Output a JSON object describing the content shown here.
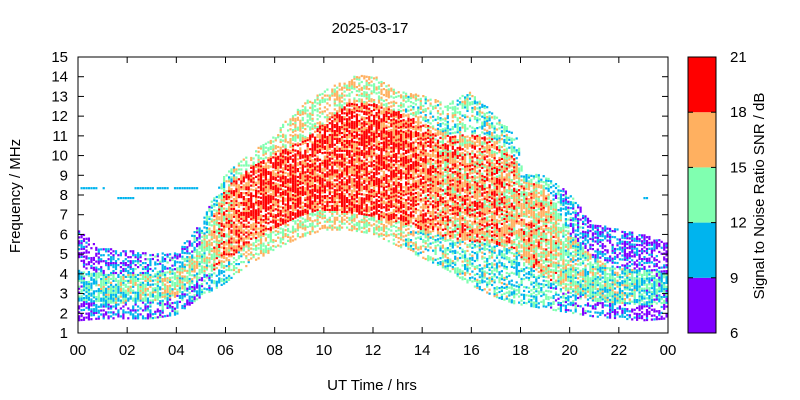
{
  "chart_data": {
    "type": "heatmap",
    "title": "2025-03-17",
    "xlabel": "UT Time / hrs",
    "ylabel": "Frequency / MHz",
    "xlim": [
      0,
      24
    ],
    "ylim": [
      1,
      15
    ],
    "x_tick_labels": [
      "00",
      "02",
      "04",
      "06",
      "08",
      "10",
      "12",
      "14",
      "16",
      "18",
      "20",
      "22",
      "00"
    ],
    "y_tick_labels": [
      "1",
      "2",
      "3",
      "4",
      "5",
      "6",
      "7",
      "8",
      "9",
      "10",
      "11",
      "12",
      "13",
      "14",
      "15"
    ],
    "colorbar": {
      "label": "Signal to Noise Ratio SNR / dB",
      "range": [
        6,
        21
      ],
      "tick_labels": [
        "6",
        "9",
        "12",
        "15",
        "18",
        "21"
      ],
      "bins": [
        {
          "from": 6,
          "to": 9,
          "color": "#8000ff"
        },
        {
          "from": 9,
          "to": 12,
          "color": "#00b4ee"
        },
        {
          "from": 12,
          "to": 15,
          "color": "#80ffb0"
        },
        {
          "from": 15,
          "to": 18,
          "color": "#ffb060"
        },
        {
          "from": 18,
          "to": 21,
          "color": "#ff0000"
        }
      ]
    },
    "grid": false,
    "profile": [
      {
        "t": 0.0,
        "lo": 1.6,
        "hi": 6.2,
        "core_lo": 2.6,
        "core_hi": 4.2,
        "snr": 11
      },
      {
        "t": 1.0,
        "lo": 1.7,
        "hi": 5.3,
        "core_lo": 2.5,
        "core_hi": 4.0,
        "snr": 13
      },
      {
        "t": 2.0,
        "lo": 1.7,
        "hi": 5.2,
        "core_lo": 2.5,
        "core_hi": 4.0,
        "snr": 13
      },
      {
        "t": 3.0,
        "lo": 1.7,
        "hi": 5.0,
        "core_lo": 2.6,
        "core_hi": 4.0,
        "snr": 14
      },
      {
        "t": 4.0,
        "lo": 1.9,
        "hi": 5.0,
        "core_lo": 2.8,
        "core_hi": 4.2,
        "snr": 14
      },
      {
        "t": 5.0,
        "lo": 2.8,
        "hi": 6.5,
        "core_lo": 3.8,
        "core_hi": 5.5,
        "snr": 14
      },
      {
        "t": 6.0,
        "lo": 3.5,
        "hi": 9.0,
        "core_lo": 4.5,
        "core_hi": 8.3,
        "snr": 17
      },
      {
        "t": 7.0,
        "lo": 4.5,
        "hi": 10.0,
        "core_lo": 5.5,
        "core_hi": 9.3,
        "snr": 19
      },
      {
        "t": 8.0,
        "lo": 5.2,
        "hi": 11.0,
        "core_lo": 6.3,
        "core_hi": 10.0,
        "snr": 19
      },
      {
        "t": 9.0,
        "lo": 5.8,
        "hi": 12.5,
        "core_lo": 6.8,
        "core_hi": 10.6,
        "snr": 19
      },
      {
        "t": 10.0,
        "lo": 6.2,
        "hi": 13.2,
        "core_lo": 7.2,
        "core_hi": 11.6,
        "snr": 19
      },
      {
        "t": 11.0,
        "lo": 6.2,
        "hi": 13.9,
        "core_lo": 7.0,
        "core_hi": 12.6,
        "snr": 19
      },
      {
        "t": 12.0,
        "lo": 6.0,
        "hi": 14.1,
        "core_lo": 6.8,
        "core_hi": 12.6,
        "snr": 19
      },
      {
        "t": 13.0,
        "lo": 5.4,
        "hi": 13.2,
        "core_lo": 6.6,
        "core_hi": 12.2,
        "snr": 19
      },
      {
        "t": 14.0,
        "lo": 4.8,
        "hi": 13.0,
        "core_lo": 6.2,
        "core_hi": 11.6,
        "snr": 18
      },
      {
        "t": 15.0,
        "lo": 4.2,
        "hi": 12.6,
        "core_lo": 5.8,
        "core_hi": 11.0,
        "snr": 17
      },
      {
        "t": 16.0,
        "lo": 3.4,
        "hi": 13.2,
        "core_lo": 5.6,
        "core_hi": 11.0,
        "snr": 17
      },
      {
        "t": 17.0,
        "lo": 2.8,
        "hi": 12.0,
        "core_lo": 5.4,
        "core_hi": 10.8,
        "snr": 17
      },
      {
        "t": 17.9,
        "lo": 2.4,
        "hi": 10.8,
        "core_lo": 5.0,
        "core_hi": 9.6,
        "snr": 16
      },
      {
        "t": 18.1,
        "lo": 2.4,
        "hi": 9.0,
        "core_lo": 4.6,
        "core_hi": 8.6,
        "snr": 16
      },
      {
        "t": 19.0,
        "lo": 2.2,
        "hi": 9.0,
        "core_lo": 3.8,
        "core_hi": 8.4,
        "snr": 16
      },
      {
        "t": 20.0,
        "lo": 2.0,
        "hi": 8.0,
        "core_lo": 3.0,
        "core_hi": 6.0,
        "snr": 14
      },
      {
        "t": 21.0,
        "lo": 1.8,
        "hi": 6.5,
        "core_lo": 2.6,
        "core_hi": 4.8,
        "snr": 13
      },
      {
        "t": 22.0,
        "lo": 1.7,
        "hi": 6.2,
        "core_lo": 2.4,
        "core_hi": 4.2,
        "snr": 13
      },
      {
        "t": 23.0,
        "lo": 1.6,
        "hi": 6.0,
        "core_lo": 2.4,
        "core_hi": 4.2,
        "snr": 12
      },
      {
        "t": 24.0,
        "lo": 1.7,
        "hi": 5.5,
        "core_lo": 2.4,
        "core_hi": 4.0,
        "snr": 11
      }
    ],
    "extra_traces": [
      {
        "t_start": 0.0,
        "t_end": 1.3,
        "freq": 8.3,
        "snr": 10
      },
      {
        "t_start": 1.6,
        "t_end": 2.3,
        "freq": 7.8,
        "snr": 10
      },
      {
        "t_start": 2.3,
        "t_end": 4.8,
        "freq": 8.3,
        "snr": 10
      },
      {
        "t_start": 22.8,
        "t_end": 23.2,
        "freq": 7.8,
        "snr": 10
      }
    ]
  }
}
